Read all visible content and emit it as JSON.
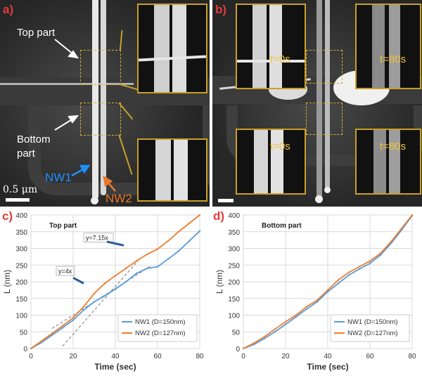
{
  "panels": {
    "a": {
      "letter": "a)",
      "top_label_1": "Top part",
      "bottom_label_1": "Bottom",
      "bottom_label_2": "part",
      "nw1": "NW1",
      "nw2": "NW2",
      "scale": "0.5 μm",
      "colors": {
        "nw1": "#1e90ff",
        "nw2": "#e8772e",
        "inset_border": "#c8a028"
      }
    },
    "b": {
      "letter": "b)",
      "t_top_left": "t=0s",
      "t_top_right": "t=80s",
      "t_bottom_left": "t=0s",
      "t_bottom_right": "t=80s"
    },
    "c": {
      "letter": "c)"
    },
    "d": {
      "letter": "d)"
    }
  },
  "chart_data": [
    {
      "type": "line",
      "title": "Top part",
      "xlabel": "Time (sec)",
      "ylabel": "L (nm)",
      "xlim": [
        0,
        80
      ],
      "ylim": [
        0,
        400
      ],
      "xticks": [
        0,
        20,
        40,
        60,
        80
      ],
      "yticks": [
        0,
        50,
        100,
        150,
        200,
        250,
        300,
        350,
        400
      ],
      "grid": true,
      "legend": "bottom-right",
      "series": [
        {
          "name": "NW1 (D=150nm)",
          "color": "#5b9bd5",
          "x": [
            0,
            5,
            10,
            15,
            20,
            25,
            30,
            35,
            40,
            45,
            50,
            55,
            60,
            65,
            70,
            75,
            80
          ],
          "y": [
            0,
            18,
            40,
            62,
            85,
            115,
            140,
            158,
            178,
            200,
            225,
            240,
            245,
            268,
            292,
            322,
            352
          ]
        },
        {
          "name": "NW2 (D=127nm)",
          "color": "#ed7d31",
          "x": [
            0,
            5,
            10,
            15,
            20,
            25,
            30,
            35,
            40,
            45,
            50,
            55,
            60,
            65,
            70,
            75,
            80
          ],
          "y": [
            0,
            22,
            45,
            68,
            92,
            125,
            165,
            195,
            218,
            240,
            262,
            282,
            298,
            322,
            350,
            375,
            400
          ]
        }
      ],
      "fit_lines": [
        {
          "label": "y=7.15x",
          "slope": 7.15,
          "x": [
            15,
            52
          ]
        },
        {
          "label": "y=4x",
          "slope": 4,
          "x": [
            10,
            57
          ]
        }
      ]
    },
    {
      "type": "line",
      "title": "Bottom part",
      "xlabel": "Time (sec)",
      "ylabel": "L (nm)",
      "xlim": [
        0,
        80
      ],
      "ylim": [
        0,
        400
      ],
      "xticks": [
        0,
        20,
        40,
        60,
        80
      ],
      "yticks": [
        0,
        50,
        100,
        150,
        200,
        250,
        300,
        350,
        400
      ],
      "grid": true,
      "legend": "bottom-right",
      "series": [
        {
          "name": "NW1 (D=150nm)",
          "color": "#5b9bd5",
          "x": [
            0,
            5,
            10,
            15,
            20,
            25,
            30,
            35,
            40,
            45,
            50,
            55,
            60,
            65,
            70,
            75,
            80
          ],
          "y": [
            0,
            12,
            30,
            50,
            72,
            95,
            118,
            140,
            170,
            195,
            220,
            238,
            255,
            280,
            315,
            355,
            398
          ]
        },
        {
          "name": "NW2 (D=127nm)",
          "color": "#ed7d31",
          "x": [
            0,
            5,
            10,
            15,
            20,
            25,
            30,
            35,
            40,
            45,
            50,
            55,
            60,
            65,
            70,
            75,
            80
          ],
          "y": [
            0,
            16,
            35,
            58,
            80,
            100,
            125,
            145,
            175,
            205,
            228,
            245,
            262,
            285,
            320,
            360,
            400
          ]
        }
      ]
    }
  ]
}
